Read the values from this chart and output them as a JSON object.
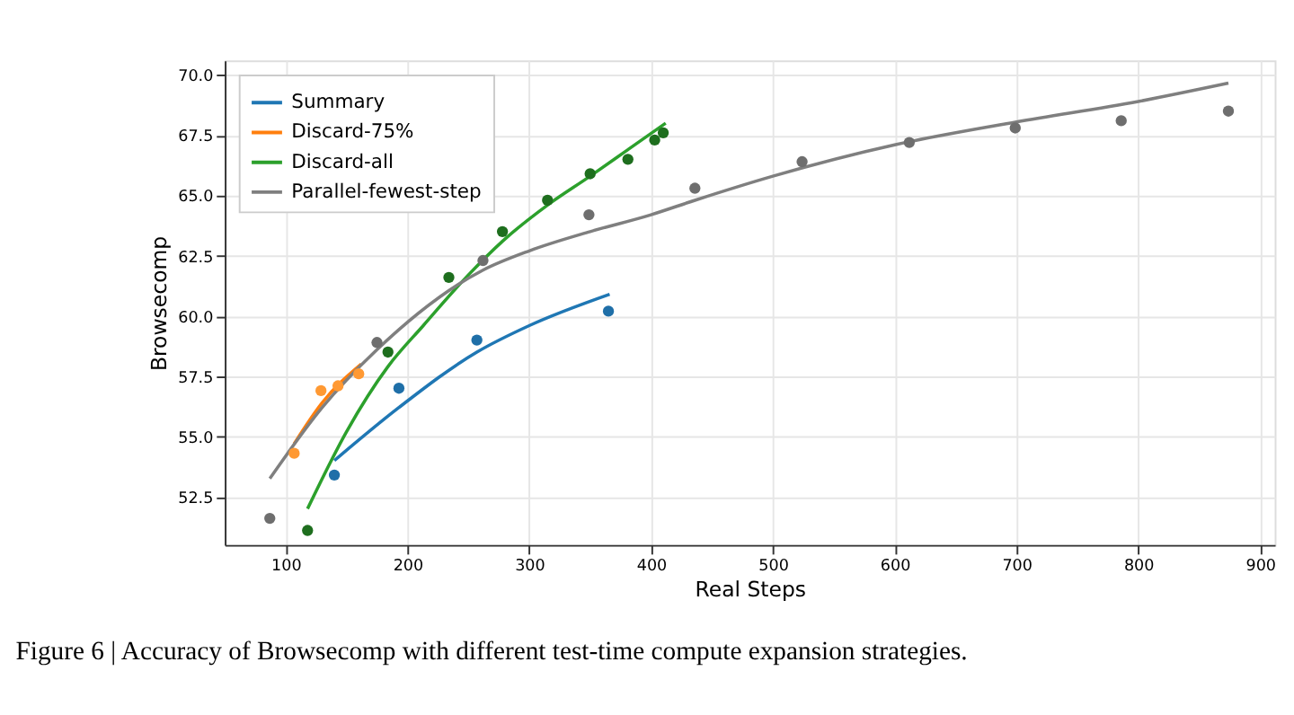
{
  "chart_data": {
    "type": "scatter",
    "xlabel": "Real Steps",
    "ylabel": "Browsecomp",
    "annotations": [
      "Figure 6 | Accuracy of Browsecomp with different test-time compute expansion strategies."
    ],
    "xlim": [
      50,
      912
    ],
    "ylim": [
      50.5,
      70.6
    ],
    "xticks": [
      100,
      200,
      300,
      400,
      500,
      600,
      700,
      800,
      900
    ],
    "yticks": [
      52.5,
      {
        "value": 55,
        "label": "55.0"
      },
      57.5,
      {
        "value": 60,
        "label": "60.0"
      },
      62.5,
      {
        "value": 65,
        "label": "65.0"
      },
      67.5,
      {
        "value": 70,
        "label": "70.0"
      }
    ],
    "grid": true,
    "legend": "top left",
    "series": [
      {
        "type": "line",
        "name": "Summary",
        "color": "#1f77b4",
        "marker": "none",
        "x": [
          140,
          193,
          257,
          300,
          366
        ],
        "values": [
          54.0,
          56.2,
          58.5,
          59.6,
          60.9
        ]
      },
      {
        "type": "line",
        "name": "Discard-75%",
        "color": "#ff7f0e",
        "marker": "none",
        "x": [
          107,
          130,
          162
        ],
        "values": [
          54.7,
          56.4,
          58.0
        ]
      },
      {
        "type": "line",
        "name": "Discard-all",
        "color": "#2ca02c",
        "marker": "none",
        "x": [
          118,
          150,
          184,
          213,
          250,
          278,
          315,
          350,
          381,
          412
        ],
        "values": [
          52.0,
          55.2,
          57.9,
          59.6,
          61.7,
          63.1,
          64.6,
          65.8,
          66.9,
          68.0
        ]
      },
      {
        "type": "line",
        "name": "Parallel-fewest-step",
        "color": "#7f7f7f",
        "marker": "none",
        "x": [
          87,
          130,
          175,
          262,
          300,
          350,
          400,
          436,
          500,
          600,
          700,
          800,
          874
        ],
        "values": [
          53.25,
          56.2,
          58.6,
          61.9,
          62.7,
          63.5,
          64.2,
          64.8,
          65.8,
          67.1,
          68.05,
          68.9,
          69.66
        ]
      },
      {
        "color": "#1f6fa8",
        "marker": "circle",
        "x": [
          140,
          193,
          257,
          365
        ],
        "values": [
          53.4,
          57.0,
          59.0,
          60.2
        ]
      },
      {
        "color": "#ff9933",
        "marker": "circle",
        "x": [
          107,
          129,
          143,
          160
        ],
        "values": [
          54.3,
          56.9,
          57.1,
          57.6
        ]
      },
      {
        "color": "#1e6e1e",
        "marker": "circle",
        "x": [
          118,
          184,
          234,
          278,
          315,
          350,
          381,
          403,
          410
        ],
        "values": [
          51.1,
          58.5,
          61.6,
          63.5,
          64.8,
          65.9,
          66.5,
          67.3,
          67.6
        ]
      },
      {
        "color": "#6e6e6e",
        "marker": "circle",
        "x": [
          87,
          175,
          262,
          349,
          436,
          524,
          612,
          699,
          786,
          874
        ],
        "values": [
          51.6,
          58.9,
          62.3,
          64.2,
          65.3,
          66.4,
          67.2,
          67.8,
          68.1,
          68.5
        ]
      }
    ]
  }
}
